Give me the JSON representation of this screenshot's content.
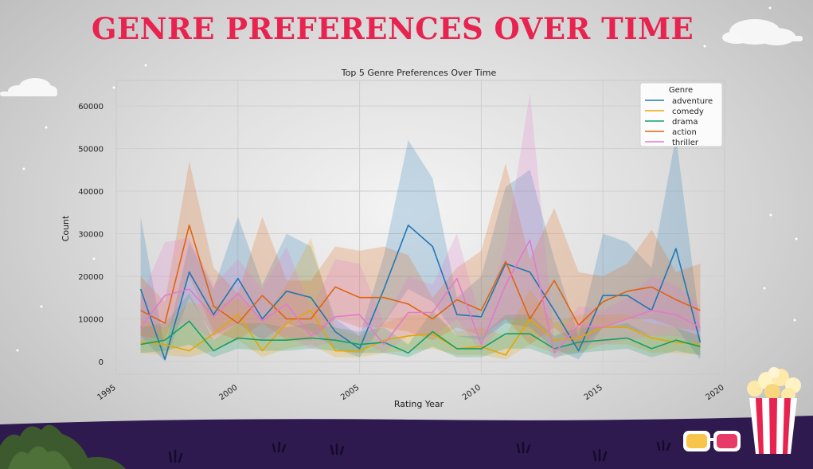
{
  "banner": {
    "title": "GENRE PREFERENCES OVER TIME"
  },
  "colors": {
    "adventure": "#1f77b4",
    "comedy": "#e5a600",
    "drama": "#12a06a",
    "action": "#dd6413",
    "thriller": "#e07bcb",
    "banner_title": "#e8234f",
    "ground": "#2e1a4f"
  },
  "decorations": [
    "cloud-icon",
    "popcorn-icon",
    "3d-glasses-icon",
    "bush-icon",
    "grass-icon",
    "star-icon"
  ],
  "chart_data": {
    "type": "line",
    "title": "Top 5 Genre Preferences Over Time",
    "xlabel": "Rating Year",
    "ylabel": "Count",
    "xlim": [
      1995,
      2020
    ],
    "ylim": [
      -3000,
      66000
    ],
    "xticks": [
      1995,
      2000,
      2005,
      2010,
      2015,
      2020
    ],
    "yticks": [
      0,
      10000,
      20000,
      30000,
      40000,
      50000,
      60000
    ],
    "grid": true,
    "legend": {
      "title": "Genre",
      "position": "top-right"
    },
    "x": [
      1996,
      1997,
      1998,
      1999,
      2000,
      2001,
      2002,
      2003,
      2004,
      2005,
      2006,
      2007,
      2008,
      2009,
      2010,
      2011,
      2012,
      2013,
      2014,
      2015,
      2016,
      2017,
      2018,
      2019
    ],
    "series": [
      {
        "name": "adventure",
        "color": "#1f77b4",
        "values": [
          17000,
          500,
          21000,
          11000,
          19500,
          10000,
          16500,
          15000,
          7000,
          3000,
          17000,
          32000,
          27000,
          11000,
          10500,
          23000,
          21000,
          12000,
          2500,
          15500,
          15500,
          12000,
          26500,
          4500
        ],
        "upper": [
          34000,
          3000,
          28000,
          17000,
          34000,
          18000,
          30000,
          27000,
          10000,
          6000,
          25000,
          52000,
          43000,
          15000,
          20000,
          41000,
          45000,
          24000,
          6000,
          30000,
          28000,
          22000,
          53000,
          8000
        ],
        "lower": [
          6000,
          0,
          15000,
          6000,
          9000,
          5000,
          9000,
          7000,
          3000,
          1000,
          9000,
          17000,
          14000,
          6000,
          5000,
          9000,
          8000,
          3000,
          500,
          8000,
          8000,
          6000,
          8000,
          500
        ]
      },
      {
        "name": "comedy",
        "color": "#e5a600",
        "values": [
          4500,
          4000,
          2500,
          6500,
          11000,
          2500,
          9000,
          12000,
          2500,
          2500,
          5000,
          6000,
          6500,
          3000,
          3500,
          1500,
          10000,
          5000,
          5500,
          8000,
          8000,
          5500,
          4500,
          4000
        ],
        "upper": [
          10000,
          8000,
          14000,
          13000,
          15000,
          10000,
          18000,
          29000,
          8000,
          6000,
          9000,
          11000,
          11000,
          7000,
          8000,
          6000,
          17000,
          9000,
          11000,
          11000,
          11000,
          9000,
          8000,
          6000
        ],
        "lower": [
          2000,
          1500,
          1000,
          2500,
          5000,
          1000,
          3000,
          4000,
          1000,
          1000,
          2000,
          2500,
          3000,
          1500,
          1500,
          500,
          4000,
          2000,
          2000,
          4000,
          4000,
          2000,
          2000,
          1500
        ]
      },
      {
        "name": "drama",
        "color": "#12a06a",
        "values": [
          4000,
          5000,
          9500,
          2500,
          5500,
          5000,
          5000,
          5500,
          5000,
          4000,
          4500,
          2000,
          7000,
          3000,
          3000,
          6500,
          6500,
          3000,
          4500,
          5000,
          5500,
          3000,
          5000,
          3500
        ],
        "upper": [
          8000,
          9000,
          16000,
          5000,
          9000,
          9000,
          8000,
          9000,
          8000,
          7000,
          8000,
          4000,
          12000,
          6000,
          6000,
          11000,
          11000,
          6000,
          8000,
          8000,
          9000,
          6000,
          8000,
          6000
        ],
        "lower": [
          2000,
          2500,
          4000,
          1000,
          3000,
          2500,
          2500,
          3000,
          2500,
          2000,
          2000,
          1000,
          3500,
          1000,
          1000,
          3000,
          3000,
          1000,
          2000,
          2500,
          3000,
          1000,
          2500,
          1500
        ]
      },
      {
        "name": "action",
        "color": "#dd6413",
        "values": [
          12000,
          9000,
          32000,
          13000,
          9000,
          15500,
          10000,
          10000,
          17500,
          15000,
          15000,
          13500,
          10000,
          14500,
          12000,
          23500,
          10000,
          19000,
          8500,
          14000,
          16500,
          17500,
          14500,
          12000
        ],
        "upper": [
          20000,
          14000,
          47000,
          22000,
          16000,
          34000,
          19000,
          19000,
          27000,
          26000,
          27000,
          25000,
          15000,
          22000,
          26000,
          46500,
          24000,
          36000,
          21000,
          20000,
          23000,
          31000,
          21000,
          23000
        ],
        "lower": [
          6000,
          5000,
          20000,
          7000,
          5000,
          9000,
          5000,
          5000,
          10000,
          8000,
          8000,
          7000,
          5000,
          8000,
          6000,
          10000,
          4000,
          8000,
          3000,
          8000,
          10000,
          10000,
          8000,
          7000
        ]
      },
      {
        "name": "thriller",
        "color": "#e07bcb",
        "values": [
          8000,
          15500,
          17000,
          10500,
          16000,
          9500,
          13500,
          6000,
          10500,
          11000,
          4000,
          11500,
          11500,
          19500,
          4000,
          18000,
          28500,
          2000,
          8500,
          8000,
          10000,
          12000,
          11000,
          8000
        ],
        "upper": [
          15000,
          28000,
          29000,
          18000,
          24000,
          17000,
          27000,
          12000,
          24000,
          23000,
          9000,
          20000,
          18000,
          30000,
          9000,
          27000,
          63000,
          5000,
          13000,
          12000,
          15000,
          20000,
          18000,
          13000
        ],
        "lower": [
          4000,
          8000,
          9000,
          5000,
          9000,
          5000,
          6000,
          3000,
          5000,
          5000,
          2000,
          6000,
          6000,
          10000,
          2000,
          10000,
          10000,
          500,
          4000,
          4000,
          5000,
          6000,
          6000,
          4000
        ]
      }
    ]
  }
}
